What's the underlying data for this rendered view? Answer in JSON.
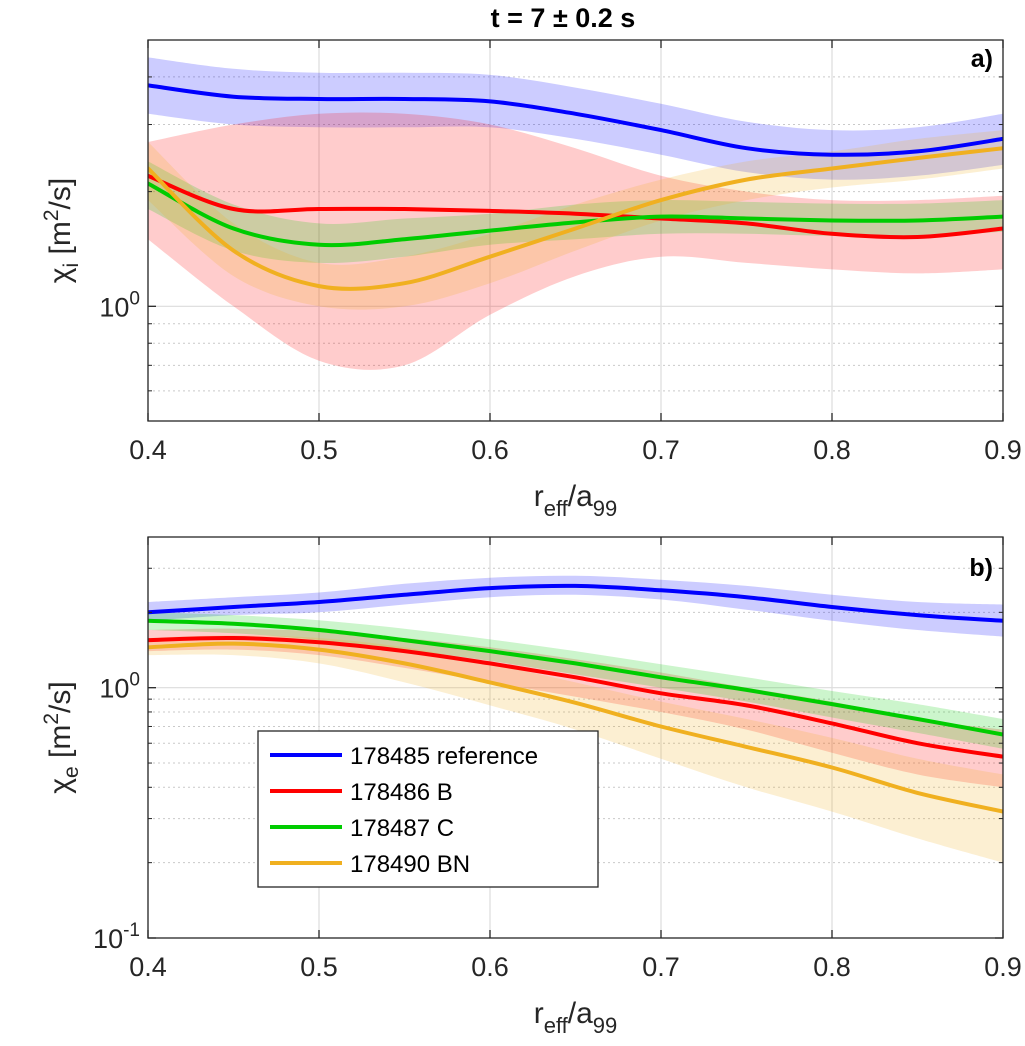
{
  "chart_data": {
    "title": "t = 7 ± 0.2 s",
    "title_parts": [
      "t = 7 ",
      "±",
      " 0.2 s"
    ],
    "legend": {
      "location": "lower-left of panel b",
      "entries": [
        {
          "label": "178485 reference",
          "color": "#0000ff"
        },
        {
          "label": "178486 B",
          "color": "#ff0000"
        },
        {
          "label": "178487 C",
          "color": "#00cc00"
        },
        {
          "label": "178490 BN",
          "color": "#f0b020"
        }
      ]
    },
    "panels": [
      {
        "panel_label": "a)",
        "type": "line",
        "y_scale": "log",
        "xlim": [
          0.4,
          0.9
        ],
        "ylim": [
          0.5,
          5.0
        ],
        "x_ticks": [
          "0.4",
          "0.5",
          "0.6",
          "0.7",
          "0.8",
          "0.9"
        ],
        "y_tick_labels": [
          {
            "base": "10",
            "exp": "0"
          }
        ],
        "xlabel": {
          "base": "r",
          "sub1": "eff",
          "mid": "/a",
          "sub2": "99"
        },
        "ylabel": {
          "sym": "χ",
          "sub": "i",
          "unit_open": " [m",
          "sup": "2",
          "unit_close": "/s]"
        },
        "grid": true,
        "x": [
          0.4,
          0.45,
          0.5,
          0.55,
          0.6,
          0.65,
          0.7,
          0.75,
          0.8,
          0.85,
          0.9
        ],
        "series": [
          {
            "name": "178485 reference",
            "color": "#0000ff",
            "values": [
              3.8,
              3.55,
              3.5,
              3.5,
              3.45,
              3.2,
              2.9,
              2.6,
              2.5,
              2.55,
              2.75
            ],
            "lower": [
              3.2,
              3.0,
              2.95,
              2.95,
              2.95,
              2.75,
              2.5,
              2.25,
              2.15,
              2.2,
              2.35
            ],
            "upper": [
              4.5,
              4.2,
              4.1,
              4.1,
              4.05,
              3.75,
              3.4,
              3.05,
              2.9,
              2.95,
              3.2
            ]
          },
          {
            "name": "178486 B",
            "color": "#ff0000",
            "values": [
              2.2,
              1.8,
              1.8,
              1.8,
              1.78,
              1.75,
              1.7,
              1.65,
              1.55,
              1.52,
              1.6
            ],
            "lower": [
              1.5,
              1.0,
              0.72,
              0.7,
              0.95,
              1.2,
              1.35,
              1.3,
              1.25,
              1.22,
              1.25
            ],
            "upper": [
              2.7,
              3.0,
              3.2,
              3.2,
              3.0,
              2.6,
              2.2,
              2.0,
              1.9,
              1.9,
              1.95
            ]
          },
          {
            "name": "178487 C",
            "color": "#00cc00",
            "values": [
              2.1,
              1.6,
              1.45,
              1.5,
              1.58,
              1.66,
              1.72,
              1.7,
              1.68,
              1.68,
              1.72
            ],
            "lower": [
              1.8,
              1.4,
              1.3,
              1.35,
              1.45,
              1.5,
              1.55,
              1.55,
              1.53,
              1.53,
              1.57
            ],
            "upper": [
              2.4,
              1.85,
              1.65,
              1.7,
              1.75,
              1.85,
              1.9,
              1.88,
              1.86,
              1.86,
              1.9
            ]
          },
          {
            "name": "178490 BN",
            "color": "#f0b020",
            "values": [
              2.3,
              1.4,
              1.13,
              1.15,
              1.35,
              1.6,
              1.9,
              2.15,
              2.3,
              2.45,
              2.6
            ],
            "lower": [
              1.9,
              1.2,
              1.0,
              1.0,
              1.15,
              1.4,
              1.68,
              1.9,
              2.05,
              2.15,
              2.3
            ],
            "upper": [
              2.7,
              1.65,
              1.3,
              1.35,
              1.55,
              1.85,
              2.15,
              2.4,
              2.55,
              2.75,
              2.9
            ]
          }
        ]
      },
      {
        "panel_label": "b)",
        "type": "line",
        "y_scale": "log",
        "xlim": [
          0.4,
          0.9
        ],
        "ylim": [
          0.1,
          4.0
        ],
        "x_ticks": [
          "0.4",
          "0.5",
          "0.6",
          "0.7",
          "0.8",
          "0.9"
        ],
        "y_tick_labels": [
          {
            "base": "10",
            "exp": "0"
          },
          {
            "base": "10",
            "exp": "-1"
          }
        ],
        "xlabel": {
          "base": "r",
          "sub1": "eff",
          "mid": "/a",
          "sub2": "99"
        },
        "ylabel": {
          "sym": "χ",
          "sub": "e",
          "unit_open": " [m",
          "sup": "2",
          "unit_close": "/s]"
        },
        "grid": true,
        "x": [
          0.4,
          0.45,
          0.5,
          0.55,
          0.6,
          0.65,
          0.7,
          0.75,
          0.8,
          0.85,
          0.9
        ],
        "series": [
          {
            "name": "178485 reference",
            "color": "#0000ff",
            "values": [
              2.0,
              2.1,
              2.2,
              2.35,
              2.5,
              2.55,
              2.45,
              2.3,
              2.1,
              1.95,
              1.85
            ],
            "lower": [
              1.85,
              1.95,
              2.0,
              2.15,
              2.3,
              2.35,
              2.25,
              2.05,
              1.85,
              1.7,
              1.6
            ],
            "upper": [
              2.2,
              2.3,
              2.4,
              2.6,
              2.75,
              2.8,
              2.7,
              2.55,
              2.35,
              2.2,
              2.15
            ]
          },
          {
            "name": "178486 B",
            "color": "#ff0000",
            "values": [
              1.55,
              1.58,
              1.52,
              1.4,
              1.25,
              1.1,
              0.95,
              0.85,
              0.72,
              0.6,
              0.53
            ],
            "lower": [
              1.4,
              1.42,
              1.35,
              1.2,
              1.05,
              0.92,
              0.8,
              0.68,
              0.55,
              0.45,
              0.4
            ],
            "upper": [
              1.7,
              1.72,
              1.68,
              1.58,
              1.45,
              1.3,
              1.15,
              1.0,
              0.88,
              0.75,
              0.68
            ]
          },
          {
            "name": "178487 C",
            "color": "#00cc00",
            "values": [
              1.85,
              1.8,
              1.7,
              1.55,
              1.4,
              1.25,
              1.1,
              0.98,
              0.86,
              0.75,
              0.65
            ],
            "lower": [
              1.7,
              1.65,
              1.55,
              1.42,
              1.28,
              1.13,
              1.0,
              0.88,
              0.76,
              0.66,
              0.57
            ],
            "upper": [
              2.0,
              1.95,
              1.86,
              1.72,
              1.56,
              1.4,
              1.24,
              1.1,
              0.97,
              0.86,
              0.75
            ]
          },
          {
            "name": "178490 BN",
            "color": "#f0b020",
            "values": [
              1.45,
              1.5,
              1.42,
              1.25,
              1.05,
              0.87,
              0.7,
              0.58,
              0.48,
              0.38,
              0.32
            ],
            "lower": [
              1.35,
              1.35,
              1.25,
              1.05,
              0.85,
              0.68,
              0.52,
              0.4,
              0.32,
              0.25,
              0.2
            ],
            "upper": [
              1.58,
              1.62,
              1.58,
              1.45,
              1.25,
              1.05,
              0.88,
              0.75,
              0.63,
              0.52,
              0.45
            ]
          }
        ]
      }
    ]
  }
}
